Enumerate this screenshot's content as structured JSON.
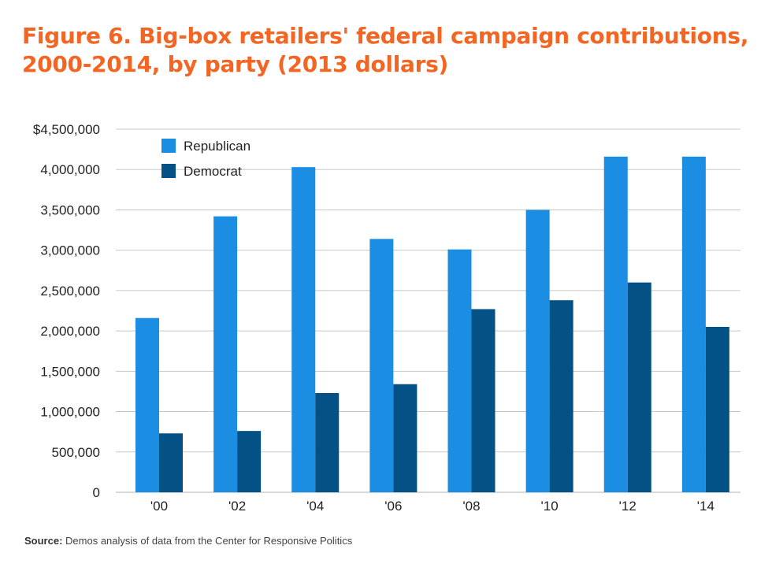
{
  "title": "Figure 6. Big-box retailers' federal campaign contributions, 2000-2014, by party (2013 dollars)",
  "source": {
    "label": "Source:",
    "text": "Demos analysis of data from the Center for Responsive Politics"
  },
  "colors": {
    "title": "#f26522",
    "republican": "#1b8ee3",
    "democrat": "#045186",
    "grid": "#c8c8c8"
  },
  "chart_data": {
    "type": "bar",
    "categories": [
      "'00",
      "'02",
      "'04",
      "'06",
      "'08",
      "'10",
      "'12",
      "'14"
    ],
    "series": [
      {
        "name": "Republican",
        "values": [
          2160000,
          3420000,
          4030000,
          3140000,
          3010000,
          3500000,
          4160000,
          4160000
        ]
      },
      {
        "name": "Democrat",
        "values": [
          730000,
          760000,
          1230000,
          1340000,
          2270000,
          2380000,
          2600000,
          2050000
        ]
      }
    ],
    "y_ticks": [
      {
        "value": 0,
        "label": "0"
      },
      {
        "value": 500000,
        "label": "500,000"
      },
      {
        "value": 1000000,
        "label": "1,000,000"
      },
      {
        "value": 1500000,
        "label": "1,500,000"
      },
      {
        "value": 2000000,
        "label": "2,000,000"
      },
      {
        "value": 2500000,
        "label": "2,500,000"
      },
      {
        "value": 3000000,
        "label": "3,000,000"
      },
      {
        "value": 3500000,
        "label": "3,500,000"
      },
      {
        "value": 4000000,
        "label": "4,000,000"
      },
      {
        "value": 4500000,
        "label": "$4,500,000"
      }
    ],
    "ylim": [
      0,
      4500000
    ],
    "grid": true,
    "legend_position": "top-left",
    "xlabel": "",
    "ylabel": ""
  }
}
